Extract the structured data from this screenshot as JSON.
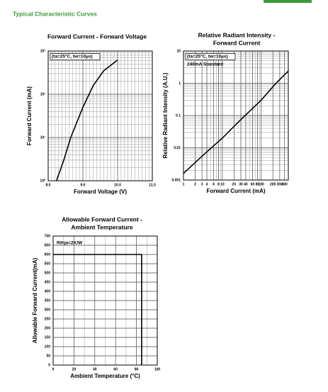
{
  "header": {
    "title": "Typical Characteristic Curves"
  },
  "chart_data": [
    {
      "type": "line",
      "title": [
        "Forward Current - Forward Voltage"
      ],
      "x_label": "Forward Voltage (V)",
      "y_label": "Forward Current (mA)",
      "annotations": [
        "(ta=25°C, tw=10µs)"
      ],
      "x": [
        8.24,
        8.45,
        8.65,
        9.0,
        9.3,
        9.6,
        10.0
      ],
      "values": [
        1,
        3,
        10,
        50,
        160,
        350,
        620
      ],
      "color": "#000000",
      "xlim": [
        8,
        11
      ],
      "xticks": [
        {
          "value": 8,
          "label": "8.0"
        },
        {
          "value": 9,
          "label": "9.0"
        },
        {
          "value": 10,
          "label": "10.0"
        },
        {
          "value": 11,
          "label": "11.0"
        }
      ],
      "ylim": [
        1,
        1000
      ],
      "y_log": true,
      "yticks": [
        {
          "value": 1,
          "label": "10⁰"
        },
        {
          "value": 10,
          "label": "10¹"
        },
        {
          "value": 100,
          "label": "10²"
        },
        {
          "value": 1000,
          "label": "10³"
        }
      ],
      "grid": true
    },
    {
      "type": "line",
      "title": [
        "Relative Radiant Intensity -",
        "Forward Current"
      ],
      "x_label": "Forward Current (mA)",
      "y_label": "Relative Radiant Intensity (A.U.)",
      "annotations": [
        "(ta=25°C, tw=10µs)",
        "240mA Standard"
      ],
      "x": [
        1,
        3,
        10,
        30,
        100,
        240,
        500
      ],
      "values": [
        0.0016,
        0.0055,
        0.02,
        0.075,
        0.3,
        1,
        2.4
      ],
      "color": "#000000",
      "xlim": [
        1,
        500
      ],
      "x_log": true,
      "xticks": [
        1,
        2,
        3,
        4,
        6,
        8,
        10,
        20,
        30,
        40,
        60,
        80,
        100,
        200,
        300,
        400
      ],
      "ylim": [
        0.001,
        10
      ],
      "y_log": true,
      "yticks": [
        0.001,
        0.01,
        0.1,
        1,
        10
      ],
      "grid": true
    },
    {
      "type": "line",
      "title": [
        "Allowable Forward Current -",
        "Ambient Temperature"
      ],
      "x_label": "Ambient Temperature (°C)",
      "y_label": "Allowable Forward Current(mA)",
      "annotations": [
        "Rthja=2K/W"
      ],
      "x": [
        0,
        85,
        85
      ],
      "values": [
        600,
        600,
        0
      ],
      "color": "#000000",
      "xlim": [
        0,
        100
      ],
      "xticks": [
        0,
        20,
        40,
        60,
        80,
        100
      ],
      "ylim": [
        0,
        700
      ],
      "yticks": [
        0,
        50,
        100,
        150,
        200,
        250,
        300,
        350,
        400,
        450,
        500,
        550,
        600,
        650,
        700
      ],
      "grid": true
    }
  ]
}
